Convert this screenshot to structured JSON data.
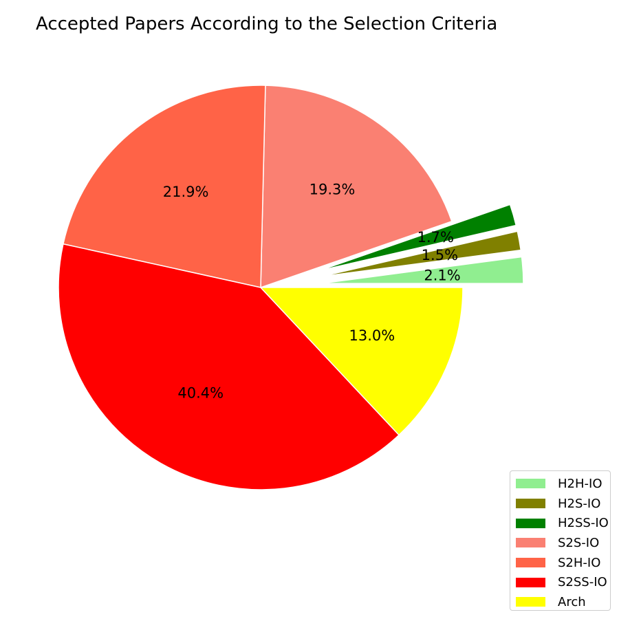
{
  "chart_data": {
    "type": "pie",
    "title": "Accepted Papers According to the Selection Criteria",
    "slices": [
      {
        "label": "H2H-IO",
        "percent": 2.1,
        "value_label": "2.1%",
        "color": "#90ee90",
        "exploded": true
      },
      {
        "label": "H2S-IO",
        "percent": 1.5,
        "value_label": "1.5%",
        "color": "#808000",
        "exploded": true
      },
      {
        "label": "H2SS-IO",
        "percent": 1.7,
        "value_label": "1.7%",
        "color": "#008000",
        "exploded": true
      },
      {
        "label": "S2S-IO",
        "percent": 19.3,
        "value_label": "19.3%",
        "color": "#fa8072",
        "exploded": false
      },
      {
        "label": "S2H-IO",
        "percent": 21.9,
        "value_label": "21.9%",
        "color": "#ff6347",
        "exploded": false
      },
      {
        "label": "S2SS-IO",
        "percent": 40.4,
        "value_label": "40.4%",
        "color": "#ff0000",
        "exploded": false
      },
      {
        "label": "Arch",
        "percent": 13.0,
        "value_label": "13.0%",
        "color": "#ffff00",
        "exploded": false
      }
    ],
    "legend_position": "lower-right"
  }
}
